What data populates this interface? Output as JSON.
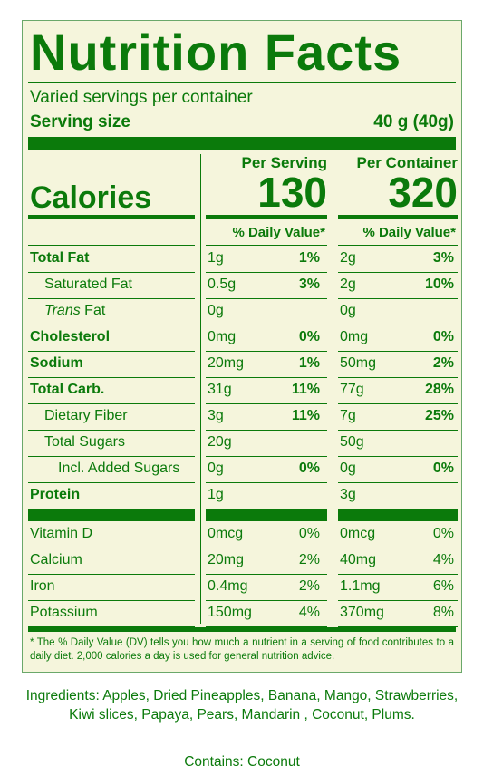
{
  "label": {
    "title": "Nutrition Facts",
    "servings_per_container": "Varied servings per container",
    "serving_size_label": "Serving size",
    "serving_size_value": "40 g (40g)",
    "per_serving_heading": "Per Serving",
    "per_container_heading": "Per Container",
    "calories_label": "Calories",
    "calories_per_serving": "130",
    "calories_per_container": "320",
    "dv_heading": "% Daily Value*",
    "nutrients": [
      {
        "name": "Total Fat",
        "bold": true,
        "serving_amt": "1g",
        "serving_dv": "1%",
        "container_amt": "2g",
        "container_dv": "3%"
      },
      {
        "name": "Saturated Fat",
        "serving_amt": "0.5g",
        "serving_dv": "3%",
        "container_amt": "2g",
        "container_dv": "10%"
      },
      {
        "name_italic": "Trans",
        "name": " Fat",
        "serving_amt": "0g",
        "serving_dv": "",
        "container_amt": "0g",
        "container_dv": ""
      },
      {
        "name": "Cholesterol",
        "bold": true,
        "serving_amt": "0mg",
        "serving_dv": "0%",
        "container_amt": "0mg",
        "container_dv": "0%"
      },
      {
        "name": "Sodium",
        "bold": true,
        "serving_amt": "20mg",
        "serving_dv": "1%",
        "container_amt": "50mg",
        "container_dv": "2%"
      },
      {
        "name": "Total Carb.",
        "bold": true,
        "serving_amt": "31g",
        "serving_dv": "11%",
        "container_amt": "77g",
        "container_dv": "28%"
      },
      {
        "name": "Dietary Fiber",
        "serving_amt": "3g",
        "serving_dv": "11%",
        "container_amt": "7g",
        "container_dv": "25%"
      },
      {
        "name": "Total Sugars",
        "serving_amt": "20g",
        "serving_dv": "",
        "container_amt": "50g",
        "container_dv": ""
      },
      {
        "name": "Incl. Added Sugars",
        "serving_amt": "0g",
        "serving_dv": "0%",
        "container_amt": "0g",
        "container_dv": "0%"
      },
      {
        "name": "Protein",
        "bold": true,
        "serving_amt": "1g",
        "serving_dv": "",
        "container_amt": "3g",
        "container_dv": ""
      }
    ],
    "vitamins": [
      {
        "name": "Vitamin D",
        "serving_amt": "0mcg",
        "serving_dv": "0%",
        "container_amt": "0mcg",
        "container_dv": "0%"
      },
      {
        "name": "Calcium",
        "serving_amt": "20mg",
        "serving_dv": "2%",
        "container_amt": "40mg",
        "container_dv": "4%"
      },
      {
        "name": "Iron",
        "serving_amt": "0.4mg",
        "serving_dv": "2%",
        "container_amt": "1.1mg",
        "container_dv": "6%"
      },
      {
        "name": "Potassium",
        "serving_amt": "150mg",
        "serving_dv": "4%",
        "container_amt": "370mg",
        "container_dv": "8%"
      }
    ],
    "footnote": "* The % Daily Value (DV) tells you how much a nutrient in a serving of food contributes to a daily diet. 2,000 calories a day is used for general nutrition advice."
  },
  "ingredients": "Ingredients: Apples, Dried Pineapples, Banana, Mango, Strawberries, Kiwi slices, Papaya, Pears, Mandarin , Coconut, Plums.",
  "contains": "Contains: Coconut",
  "colors": {
    "label_bg": "#f5f5dc",
    "text": "#0b7a0b"
  }
}
